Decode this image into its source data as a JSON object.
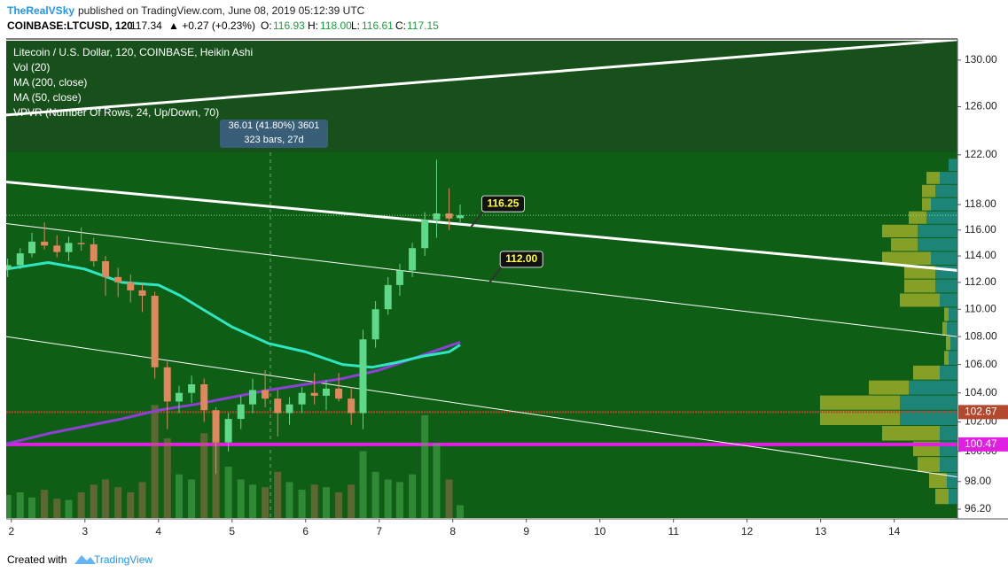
{
  "header": {
    "author": "TheRealVSky",
    "published": "published on TradingView.com, June 08, 2019 05:12:39 UTC"
  },
  "symbol_bar": {
    "symbol": "COINBASE:LTCUSD, 120",
    "last": "117.34",
    "change": "▲ +0.27 (+0.23%)",
    "o_label": "O:",
    "o": "116.93",
    "h_label": "H:",
    "h": "118.00",
    "l_label": "L:",
    "l": "116.61",
    "c_label": "C:",
    "c": "117.15"
  },
  "footer": {
    "created": "Created with",
    "brand": "TradingView"
  },
  "chart_data": {
    "type": "candlestick",
    "title": "Litecoin / U.S. Dollar, 120, COINBASE, Heikin Ashi",
    "volume_name": "Vol (20)",
    "log_scale": true,
    "up_color": "#5fd889",
    "down_color": "#e0875e",
    "xlim": [
      1.93,
      14.86
    ],
    "xticks": [
      2,
      3,
      4,
      5,
      6,
      7,
      8,
      9,
      10,
      11,
      12,
      13,
      14
    ],
    "ylim": [
      95.63,
      131.7
    ],
    "yticks": [
      {
        "value": 96.2,
        "label": "96.20"
      },
      {
        "value": 98,
        "label": "98.00"
      },
      {
        "value": 100,
        "label": "100.00"
      },
      {
        "value": 102,
        "label": "102.00"
      },
      {
        "value": 104,
        "label": "104.00"
      },
      {
        "value": 106,
        "label": "106.00"
      },
      {
        "value": 108,
        "label": "108.00"
      },
      {
        "value": 110,
        "label": "110.00"
      },
      {
        "value": 112,
        "label": "112.00"
      },
      {
        "value": 114,
        "label": "114.00"
      },
      {
        "value": 116,
        "label": "116.00"
      },
      {
        "value": 118,
        "label": "118.00"
      },
      {
        "value": 122,
        "label": "122.00"
      },
      {
        "value": 126,
        "label": "126.00"
      },
      {
        "value": 130,
        "label": "130.00"
      }
    ],
    "x": [
      1.95,
      2.12,
      2.28,
      2.45,
      2.62,
      2.78,
      2.95,
      3.12,
      3.28,
      3.45,
      3.62,
      3.78,
      3.95,
      4.12,
      4.28,
      4.45,
      4.62,
      4.78,
      4.95,
      5.12,
      5.28,
      5.45,
      5.62,
      5.78,
      5.95,
      6.12,
      6.28,
      6.45,
      6.62,
      6.78,
      6.95,
      7.12,
      7.28,
      7.45,
      7.62,
      7.78,
      7.95,
      8.1
    ],
    "open": [
      113.0,
      113.3,
      114.2,
      115.1,
      114.8,
      114.3,
      115.0,
      114.9,
      113.6,
      112.4,
      112.0,
      111.4,
      111.0,
      105.8,
      103.4,
      104.0,
      104.6,
      102.8,
      100.6,
      102.2,
      103.2,
      104.2,
      103.6,
      102.6,
      103.2,
      104.0,
      103.8,
      104.3,
      103.6,
      102.6,
      107.8,
      110.0,
      111.8,
      112.9,
      114.6,
      116.8,
      117.3,
      116.93
    ],
    "high": [
      113.8,
      114.6,
      115.8,
      116.6,
      115.6,
      115.5,
      116.2,
      115.4,
      114.0,
      113.1,
      112.6,
      111.9,
      111.3,
      106.2,
      104.5,
      105.2,
      105.0,
      103.0,
      102.6,
      103.8,
      105.0,
      105.6,
      104.2,
      103.7,
      104.4,
      105.4,
      104.9,
      105.4,
      104.4,
      108.5,
      110.6,
      112.4,
      113.4,
      115.0,
      117.4,
      121.6,
      119.3,
      118.0
    ],
    "low": [
      112.4,
      113.0,
      113.9,
      114.5,
      113.9,
      113.6,
      114.4,
      113.2,
      111.0,
      110.9,
      110.5,
      109.8,
      105.0,
      101.5,
      102.6,
      103.3,
      102.0,
      98.5,
      100.0,
      101.5,
      102.6,
      103.0,
      101.0,
      101.8,
      102.6,
      103.2,
      102.8,
      103.4,
      101.8,
      101.5,
      107.2,
      109.6,
      111.0,
      112.4,
      114.0,
      115.4,
      116.0,
      116.61
    ],
    "close": [
      113.3,
      114.2,
      115.1,
      114.8,
      114.3,
      115.0,
      114.9,
      113.6,
      112.4,
      112.0,
      111.4,
      111.0,
      105.8,
      103.4,
      104.0,
      104.6,
      102.8,
      100.6,
      102.2,
      103.2,
      104.2,
      103.6,
      102.6,
      103.2,
      104.0,
      103.8,
      104.3,
      103.6,
      102.6,
      107.8,
      110.0,
      111.8,
      112.9,
      114.6,
      116.8,
      117.3,
      116.9,
      117.15
    ],
    "volume": [
      18,
      20,
      16,
      22,
      15,
      14,
      20,
      26,
      30,
      24,
      20,
      28,
      88,
      62,
      34,
      30,
      66,
      72,
      40,
      30,
      26,
      24,
      36,
      28,
      22,
      26,
      24,
      20,
      26,
      52,
      36,
      30,
      28,
      34,
      80,
      58,
      30,
      10
    ],
    "ma": [
      {
        "name": "MA (200, close)",
        "color": "#8d3fd6",
        "x": [
          1.93,
          2.5,
          3.0,
          3.5,
          4.0,
          4.5,
          5.0,
          5.5,
          6.0,
          6.5,
          7.0,
          7.5,
          8.1
        ],
        "values": [
          100.5,
          101.2,
          101.7,
          102.2,
          102.8,
          103.2,
          103.7,
          104.2,
          104.6,
          105.0,
          105.6,
          106.5,
          107.6
        ]
      },
      {
        "name": "MA (50, close)",
        "color": "#2ee6c0",
        "x": [
          1.93,
          2.5,
          3.0,
          3.5,
          4.0,
          4.3,
          4.6,
          5.0,
          5.5,
          6.0,
          6.5,
          6.9,
          7.2,
          7.6,
          7.95,
          8.1
        ],
        "values": [
          113.0,
          113.5,
          113.0,
          112.0,
          111.8,
          111.0,
          110.0,
          108.7,
          107.5,
          106.9,
          106.0,
          105.8,
          106.1,
          106.6,
          106.9,
          107.4
        ]
      }
    ],
    "trendlines": [
      {
        "color": "#ffffff",
        "width": 3,
        "x": [
          1.93,
          14.86
        ],
        "values": [
          125.3,
          131.8
        ]
      },
      {
        "color": "#ffffff",
        "width": 3,
        "x": [
          1.93,
          14.86
        ],
        "values": [
          119.8,
          112.9
        ]
      },
      {
        "color": "#ffffff",
        "width": 1,
        "x": [
          1.93,
          14.86
        ],
        "values": [
          116.5,
          108.0
        ]
      },
      {
        "color": "#ffffff",
        "width": 1,
        "x": [
          1.93,
          14.86
        ],
        "values": [
          108.0,
          98.3
        ]
      }
    ],
    "price_lines": [
      {
        "value": 102.67,
        "color": "#b4482c"
      },
      {
        "value": 100.47,
        "color": "#e020e0"
      }
    ],
    "callouts": [
      {
        "x": 8.25,
        "value": 116.25
      },
      {
        "x": 8.5,
        "value": 112,
        "value_label": "112.00"
      }
    ],
    "measure": {
      "text": [
        "36.01 (41.80%) 3601",
        "323 bars, 27d"
      ]
    },
    "volume_profile": {
      "name": "VPVR (Number Of Rows, 24, Up/Down, 70)",
      "up_color": "#1f8c8a",
      "down_color": "#9aaa2a",
      "bins": [
        96.5,
        97.55,
        98.6,
        99.65,
        100.7,
        101.75,
        102.8,
        103.85,
        104.9,
        105.95,
        107.0,
        108.05,
        109.1,
        110.15,
        111.2,
        112.25,
        113.3,
        114.35,
        115.4,
        116.45,
        117.5,
        118.55,
        119.6,
        120.65,
        121.7
      ],
      "up": [
        10,
        12,
        20,
        20,
        20,
        65,
        65,
        55,
        20,
        10,
        8,
        12,
        10,
        20,
        25,
        25,
        30,
        45,
        45,
        35,
        30,
        25,
        20,
        10
      ],
      "down": [
        15,
        20,
        25,
        30,
        65,
        90,
        90,
        45,
        30,
        5,
        5,
        5,
        5,
        45,
        35,
        35,
        55,
        30,
        40,
        20,
        10,
        15,
        15,
        0
      ]
    }
  }
}
